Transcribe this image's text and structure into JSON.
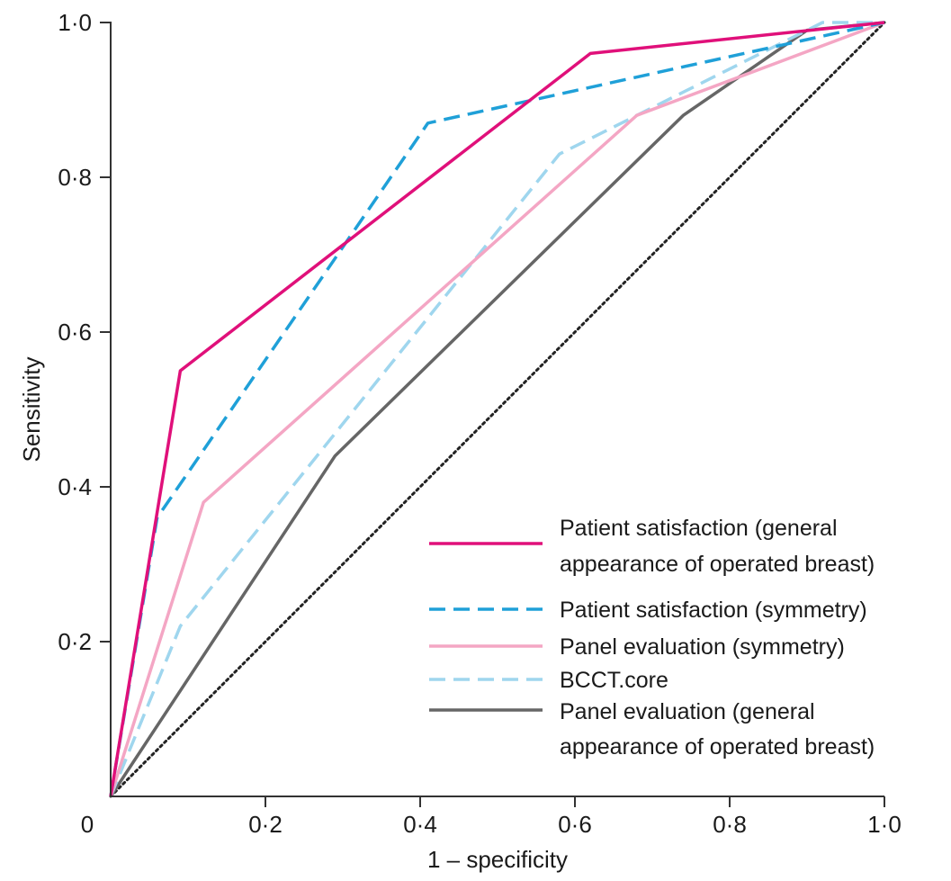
{
  "chart_data": {
    "type": "line",
    "title": "",
    "xlabel": "1 – specificity",
    "ylabel": "Sensitivity",
    "xlim": [
      0,
      1
    ],
    "ylim": [
      0,
      1
    ],
    "xticks": [
      0,
      0.2,
      0.4,
      0.6,
      0.8,
      1.0
    ],
    "xtick_labels": [
      "0",
      "0·2",
      "0·4",
      "0·6",
      "0·8",
      "1·0"
    ],
    "yticks": [
      0.2,
      0.4,
      0.6,
      0.8,
      1.0
    ],
    "ytick_labels": [
      "0·2",
      "0·4",
      "0·6",
      "0·8",
      "1·0"
    ],
    "grid": false,
    "legend_position": "bottom-right",
    "reference_line": {
      "style": "dotted",
      "color": "#222222",
      "points": [
        [
          0,
          0
        ],
        [
          1,
          1
        ]
      ]
    },
    "series": [
      {
        "name": "Patient satisfaction (general appearance of operated breast)",
        "legend_lines": [
          "Patient satisfaction (general",
          "appearance of operated breast)"
        ],
        "color": "#e0107a",
        "style": "solid",
        "points": [
          [
            0,
            0
          ],
          [
            0.09,
            0.55
          ],
          [
            0.62,
            0.96
          ],
          [
            1.0,
            1.0
          ]
        ]
      },
      {
        "name": "Patient satisfaction (symmetry)",
        "legend_lines": [
          "Patient satisfaction (symmetry)"
        ],
        "color": "#1fa0d8",
        "style": "dashed",
        "points": [
          [
            0,
            0
          ],
          [
            0.06,
            0.36
          ],
          [
            0.41,
            0.87
          ],
          [
            1.0,
            1.0
          ]
        ]
      },
      {
        "name": "Panel evaluation (symmetry)",
        "legend_lines": [
          "Panel evaluation (symmetry)"
        ],
        "color": "#f4a6c4",
        "style": "solid",
        "points": [
          [
            0,
            0
          ],
          [
            0.12,
            0.38
          ],
          [
            0.68,
            0.88
          ],
          [
            1.0,
            1.0
          ]
        ]
      },
      {
        "name": "BCCT.core",
        "legend_lines": [
          "BCCT.core"
        ],
        "color": "#9fd6ee",
        "style": "dashed",
        "points": [
          [
            0,
            0
          ],
          [
            0.09,
            0.22
          ],
          [
            0.58,
            0.83
          ],
          [
            0.92,
            1.0
          ],
          [
            1.0,
            1.0
          ]
        ]
      },
      {
        "name": "Panel evaluation (general appearance of operated breast)",
        "legend_lines": [
          "Panel evaluation (general",
          "appearance of operated breast)"
        ],
        "color": "#666666",
        "style": "solid",
        "points": [
          [
            0,
            0
          ],
          [
            0.29,
            0.44
          ],
          [
            0.74,
            0.88
          ],
          [
            0.9,
            0.99
          ],
          [
            1.0,
            1.0
          ]
        ]
      }
    ]
  }
}
